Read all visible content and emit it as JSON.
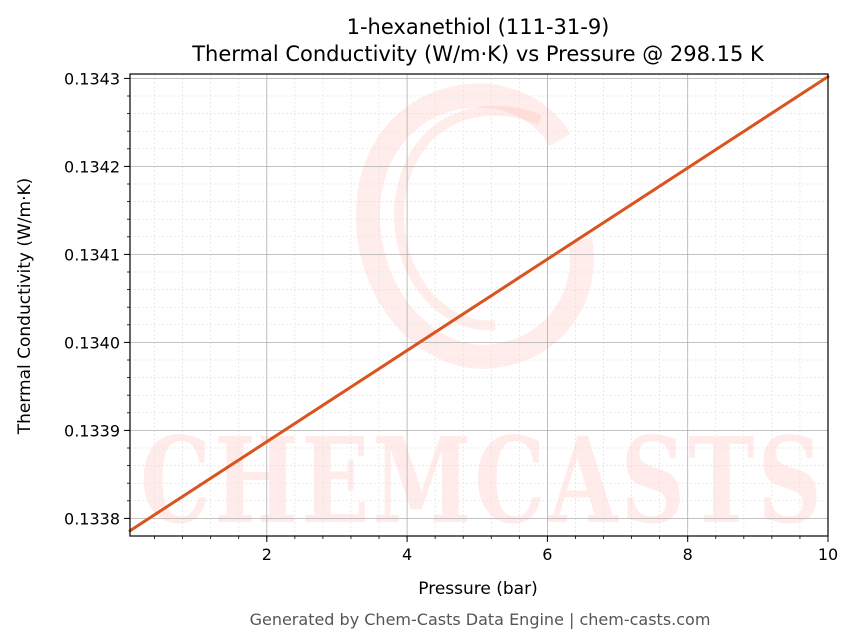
{
  "title_line1": "1-hexanethiol (111-31-9)",
  "title_line2": "Thermal Conductivity (W/m·K) vs Pressure @ 298.15 K",
  "footer": "Generated by Chem-Casts Data Engine | chem-casts.com",
  "watermark": "CHEMCASTS",
  "colors": {
    "line": "#d9541e",
    "grid_major": "#b0b0b0",
    "grid_minor": "#e2e2e2",
    "watermark": "#ff6b5e"
  },
  "chart_data": {
    "type": "line",
    "title": "1-hexanethiol (111-31-9) Thermal Conductivity (W/m·K) vs Pressure @ 298.15 K",
    "xlabel": "Pressure (bar)",
    "ylabel": "Thermal Conductivity (W/m·K)",
    "xlim": [
      0.05,
      10
    ],
    "ylim": [
      0.13378,
      0.134305
    ],
    "x_ticks": [
      2,
      4,
      6,
      8,
      10
    ],
    "x_tick_labels": [
      "2",
      "4",
      "6",
      "8",
      "10"
    ],
    "y_ticks": [
      0.1338,
      0.1339,
      0.134,
      0.1341,
      0.1342,
      0.1343
    ],
    "y_tick_labels": [
      "0.1338",
      "0.1339",
      "0.1340",
      "0.1341",
      "0.1342",
      "0.1343"
    ],
    "grid": true,
    "series": [
      {
        "x": [
          0.05,
          10
        ],
        "y": [
          0.133786,
          0.134302
        ]
      }
    ]
  }
}
